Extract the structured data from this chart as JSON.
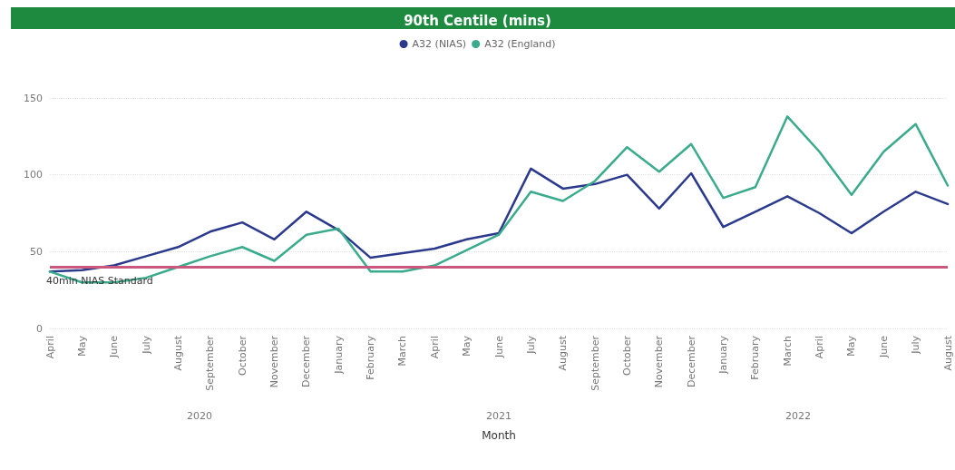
{
  "chart_data": {
    "type": "line",
    "title": "90th Centile (mins)",
    "xlabel": "Month",
    "categories": [
      "April",
      "May",
      "June",
      "July",
      "August",
      "September",
      "October",
      "November",
      "December",
      "January",
      "February",
      "March",
      "April",
      "May",
      "June",
      "July",
      "August",
      "September",
      "October",
      "November",
      "December",
      "January",
      "February",
      "March",
      "April",
      "May",
      "June",
      "July",
      "August"
    ],
    "series": [
      {
        "name": "A32 (NIAS)",
        "color": "#2b3a8c",
        "values": [
          37,
          38,
          41,
          47,
          53,
          63,
          69,
          58,
          76,
          64,
          46,
          49,
          52,
          58,
          62,
          104,
          91,
          94,
          100,
          78,
          101,
          66,
          76,
          86,
          75,
          62,
          76,
          89,
          81
        ]
      },
      {
        "name": "A32 (England)",
        "color": "#3aab8c",
        "values": [
          37,
          30,
          30,
          33,
          40,
          47,
          53,
          44,
          61,
          65,
          37,
          37,
          41,
          51,
          61,
          89,
          83,
          96,
          118,
          102,
          120,
          85,
          92,
          138,
          115,
          87,
          115,
          133,
          93
        ]
      }
    ],
    "ylim": [
      0,
      150
    ],
    "yticks": [
      0,
      50,
      100,
      150
    ],
    "grid": "y",
    "legend": "top",
    "marker": "none",
    "line_style": "solid",
    "ref_lines": [
      {
        "axis": "y",
        "value": 40,
        "label": "40min NIAS Standard",
        "color": "#c9587f"
      }
    ],
    "annotations": [
      "2020",
      "2021",
      "2022"
    ]
  }
}
